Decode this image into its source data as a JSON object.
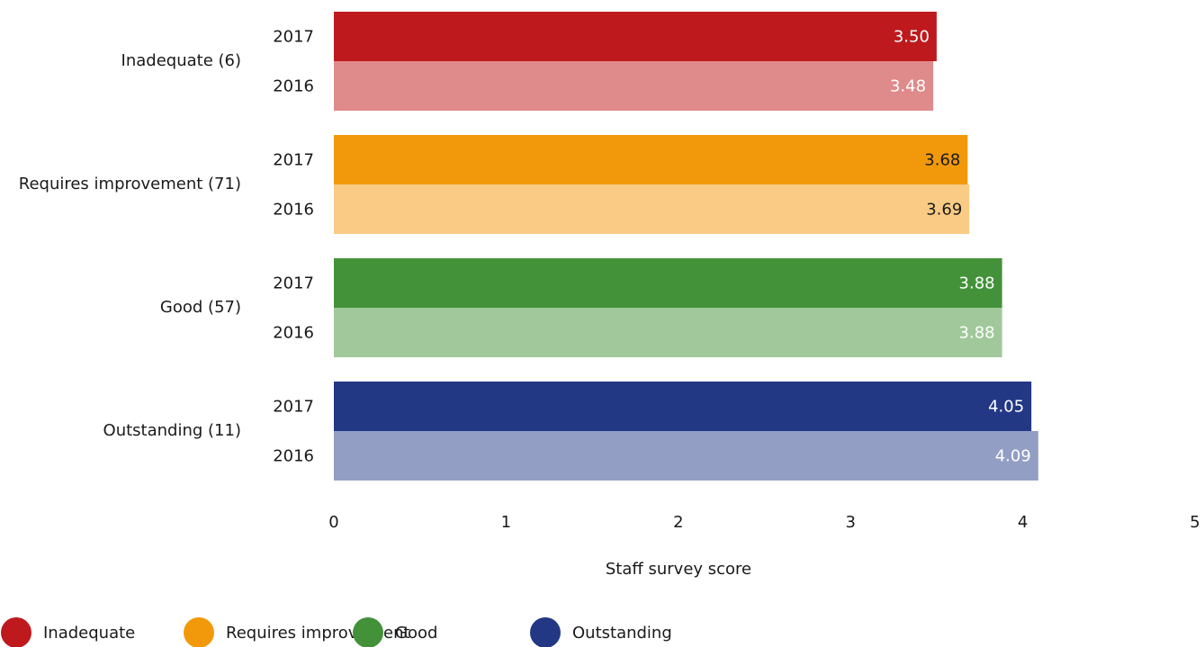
{
  "chart_data": {
    "type": "bar",
    "orientation": "horizontal",
    "categories": [
      "Inadequate (6)",
      "Requires improvement (71)",
      "Good (57)",
      "Outstanding (11)"
    ],
    "series": [
      {
        "name": "2017",
        "values": [
          3.5,
          3.68,
          3.88,
          4.05
        ],
        "value_labels": [
          "3.50",
          "3.68",
          "3.88",
          "4.05"
        ],
        "colors": [
          "#be1a1e",
          "#f2990b",
          "#43923a",
          "#233885"
        ],
        "value_label_colors": [
          "#ffffff",
          "#1a1a1a",
          "#ffffff",
          "#ffffff"
        ]
      },
      {
        "name": "2016",
        "values": [
          3.48,
          3.69,
          3.88,
          4.09
        ],
        "value_labels": [
          "3.48",
          "3.69",
          "3.88",
          "4.09"
        ],
        "colors": [
          "#df8a8b",
          "#f9cb84",
          "#a1c89b",
          "#929ec4"
        ],
        "value_label_colors": [
          "#ffffff",
          "#1a1a1a",
          "#ffffff",
          "#ffffff"
        ]
      }
    ],
    "xlim": [
      0,
      5
    ],
    "xticks": [
      0,
      1,
      2,
      3,
      4,
      5
    ],
    "xlabel": "Staff survey score",
    "legend": [
      {
        "name": "Inadequate",
        "color": "#be1a1e"
      },
      {
        "name": "Requires improvement",
        "color": "#f2990b"
      },
      {
        "name": "Good",
        "color": "#43923a"
      },
      {
        "name": "Outstanding",
        "color": "#233885"
      }
    ]
  }
}
